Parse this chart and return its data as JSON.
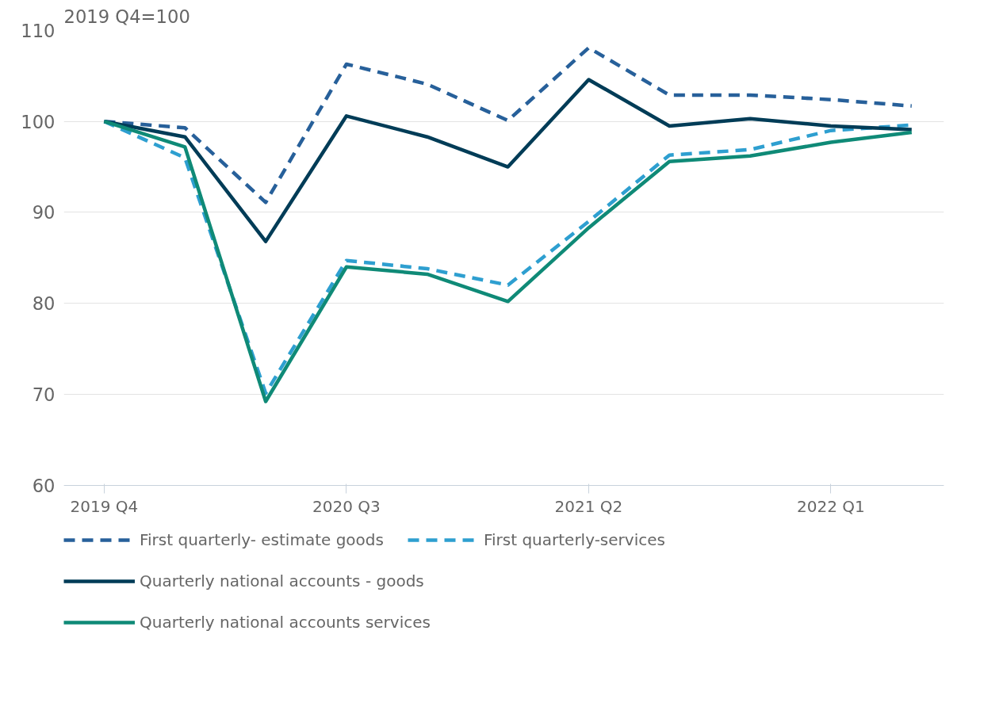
{
  "chart_data": {
    "type": "line",
    "ylabel": "2019 Q4=100",
    "categories": [
      "2019 Q4",
      null,
      null,
      "2020 Q3",
      null,
      null,
      "2021 Q2",
      null,
      null,
      "2022 Q1",
      null
    ],
    "ylim": [
      60,
      110
    ],
    "yticks": [
      60,
      70,
      80,
      90,
      100,
      110
    ],
    "grid": "y",
    "legend": "bottom",
    "series": [
      {
        "name": "First quarterly- estimate goods",
        "color": "#27609a",
        "line_style": "dashed",
        "values": [
          100,
          99.3,
          91.1,
          106.3,
          104.1,
          100.1,
          108.1,
          102.9,
          102.9,
          102.4,
          101.7
        ]
      },
      {
        "name": "First quarterly-services",
        "color": "#2e9fd0",
        "line_style": "dashed",
        "values": [
          100,
          96.0,
          70.1,
          84.7,
          83.8,
          82.0,
          89.0,
          96.3,
          96.9,
          99.0,
          99.6
        ]
      },
      {
        "name": "Quarterly national accounts - goods",
        "color": "#003c57",
        "line_style": "solid",
        "values": [
          100,
          98.3,
          86.8,
          100.6,
          98.3,
          95.0,
          104.6,
          99.5,
          100.3,
          99.5,
          99.1
        ]
      },
      {
        "name": "Quarterly national accounts services",
        "color": "#0f8a77",
        "line_style": "solid",
        "values": [
          100,
          97.2,
          69.2,
          84.0,
          83.2,
          80.2,
          88.3,
          95.6,
          96.2,
          97.7,
          98.8
        ]
      }
    ]
  }
}
